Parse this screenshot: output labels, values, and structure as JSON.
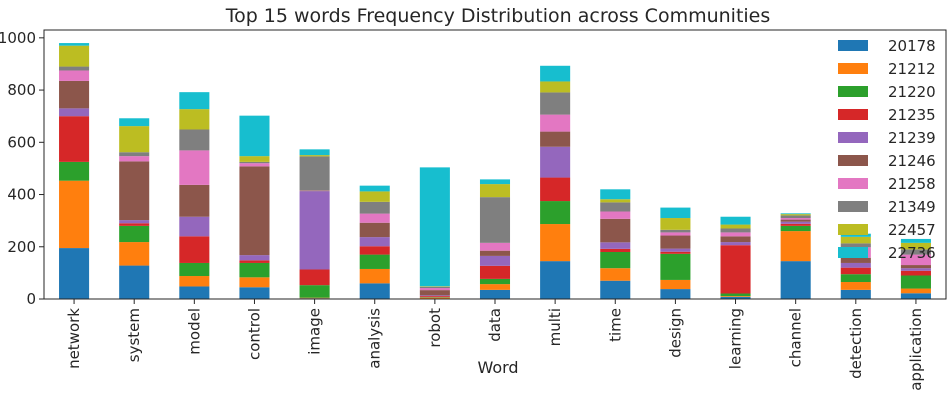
{
  "chart_data": {
    "type": "bar",
    "stacked": true,
    "title": "Top 15 words Frequency Distribution across Communities",
    "xlabel": "Word",
    "ylabel": "",
    "ylim": [
      0,
      1030
    ],
    "yticks": [
      0,
      200,
      400,
      600,
      800,
      1000
    ],
    "grid": false,
    "legend_position": "top-right",
    "categories": [
      "network",
      "system",
      "model",
      "control",
      "image",
      "analysis",
      "robot",
      "data",
      "multi",
      "time",
      "design",
      "learning",
      "channel",
      "detection",
      "application"
    ],
    "series": [
      {
        "name": "20178",
        "color": "#1f77b4",
        "values": [
          195,
          128,
          48,
          45,
          3,
          60,
          2,
          35,
          145,
          70,
          38,
          8,
          145,
          35,
          22
        ]
      },
      {
        "name": "21212",
        "color": "#ff7f0e",
        "values": [
          258,
          90,
          40,
          38,
          2,
          55,
          3,
          22,
          142,
          48,
          35,
          3,
          115,
          30,
          18
        ]
      },
      {
        "name": "21220",
        "color": "#2ca02c",
        "values": [
          72,
          62,
          50,
          55,
          48,
          55,
          2,
          20,
          88,
          62,
          100,
          10,
          20,
          30,
          50
        ]
      },
      {
        "name": "21235",
        "color": "#d62728",
        "values": [
          175,
          10,
          102,
          10,
          60,
          32,
          4,
          50,
          90,
          12,
          8,
          185,
          8,
          25,
          18
        ]
      },
      {
        "name": "21239",
        "color": "#9467bd",
        "values": [
          30,
          12,
          75,
          20,
          300,
          35,
          3,
          38,
          118,
          25,
          12,
          12,
          8,
          18,
          10
        ]
      },
      {
        "name": "21246",
        "color": "#8c564b",
        "values": [
          105,
          225,
          122,
          340,
          2,
          55,
          20,
          20,
          58,
          90,
          50,
          22,
          8,
          20,
          12
        ]
      },
      {
        "name": "21258",
        "color": "#e377c2",
        "values": [
          40,
          20,
          132,
          12,
          1,
          35,
          8,
          30,
          65,
          28,
          12,
          15,
          6,
          40,
          40
        ]
      },
      {
        "name": "21349",
        "color": "#7f7f7f",
        "values": [
          15,
          15,
          80,
          5,
          130,
          45,
          5,
          175,
          85,
          35,
          10,
          15,
          10,
          15,
          20
        ]
      },
      {
        "name": "22457",
        "color": "#bcbd22",
        "values": [
          80,
          100,
          78,
          22,
          5,
          40,
          2,
          50,
          42,
          12,
          45,
          15,
          5,
          25,
          25
        ]
      },
      {
        "name": "22736",
        "color": "#17becf",
        "values": [
          10,
          30,
          65,
          155,
          22,
          22,
          455,
          18,
          60,
          38,
          40,
          30,
          3,
          12,
          15
        ]
      }
    ]
  }
}
